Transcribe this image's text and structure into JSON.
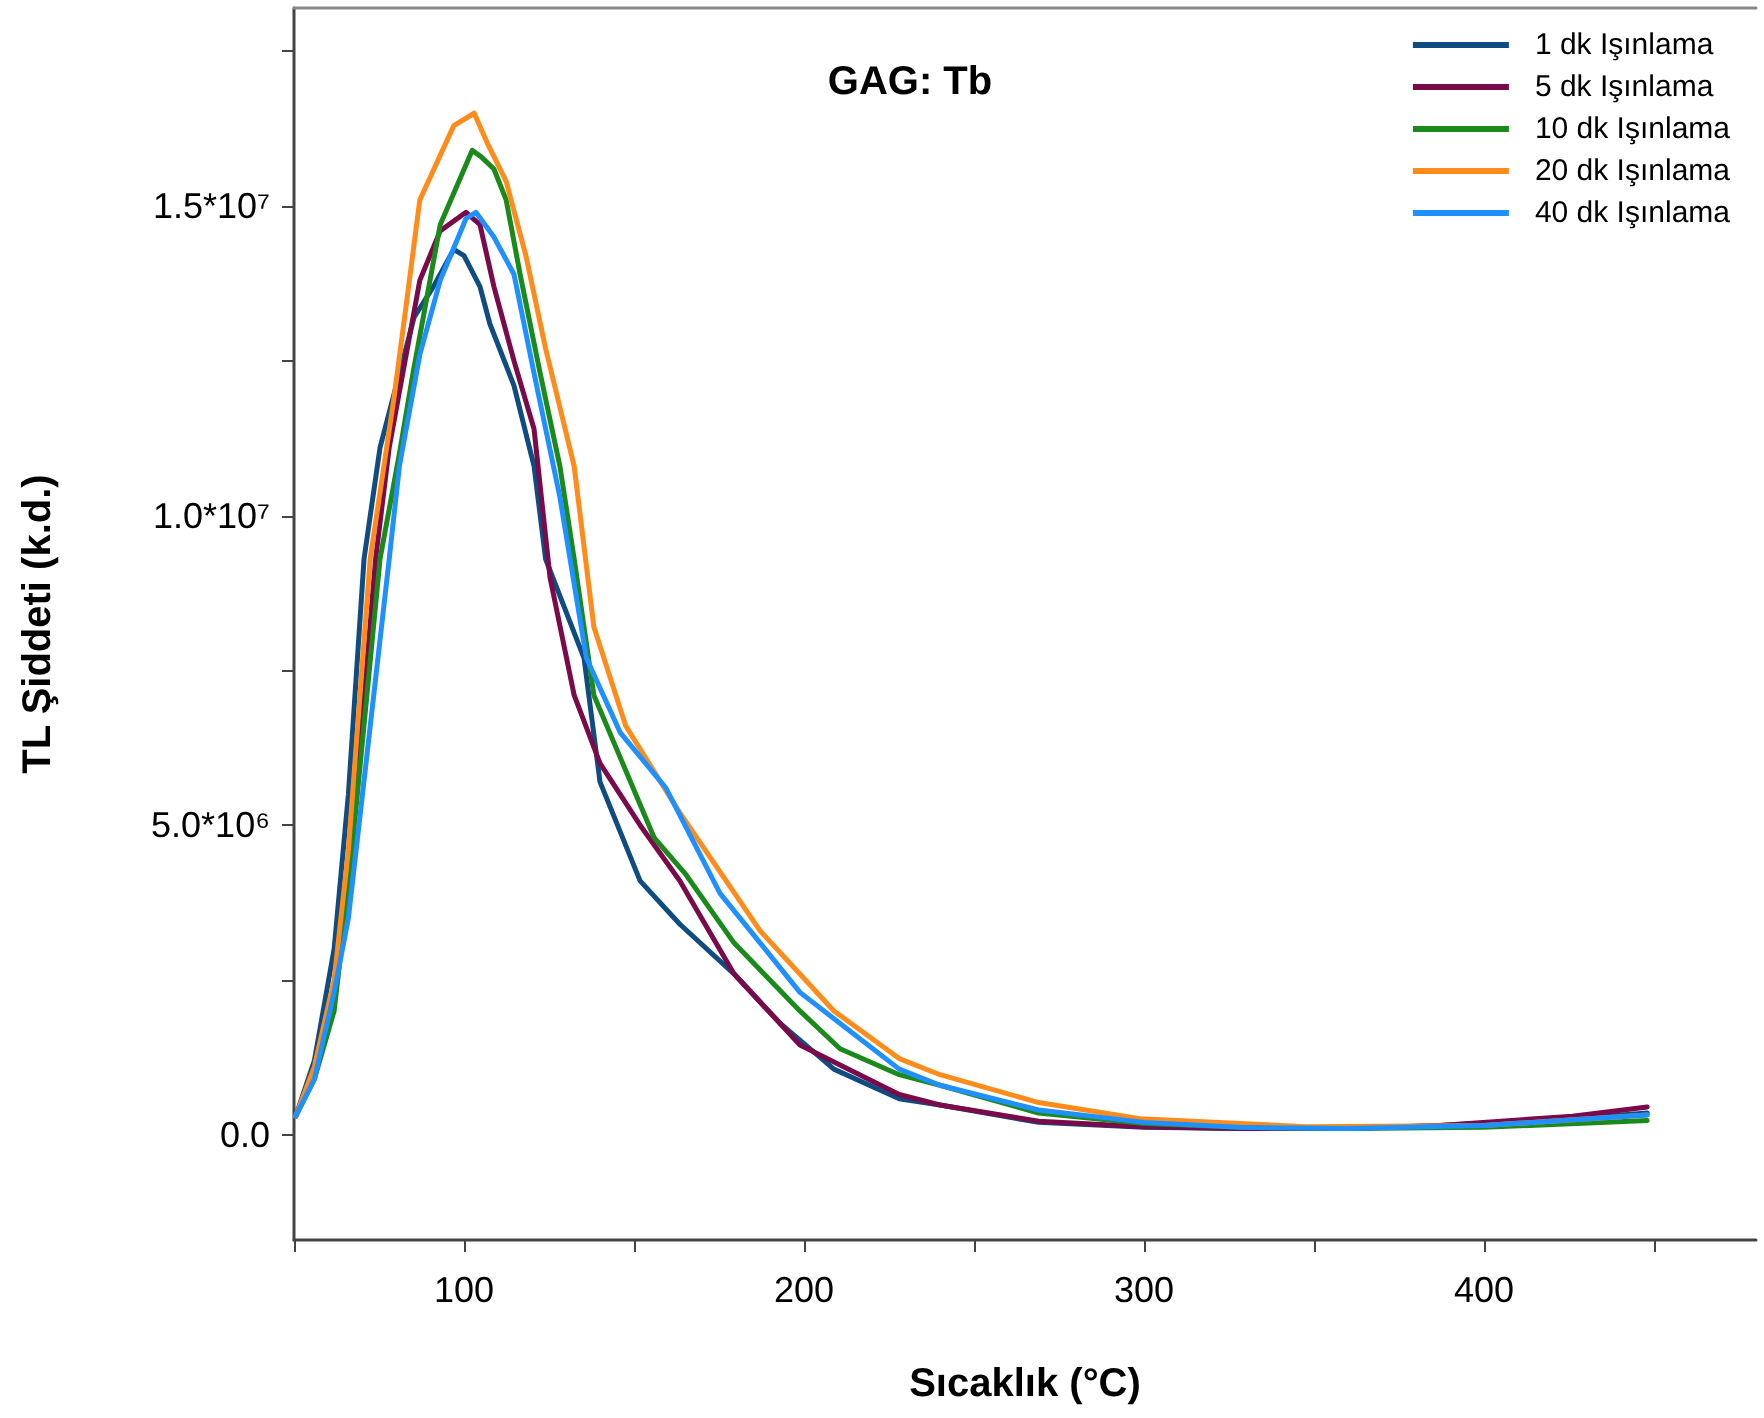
{
  "chart_data": {
    "type": "line",
    "title": "GAG: Tb",
    "xlabel": "Sıcaklık (°C)",
    "ylabel": "TL Şiddeti (k.d.)",
    "xlim": [
      50,
      480
    ],
    "xticks": [
      {
        "value": 50,
        "label": null
      },
      100,
      {
        "value": 150,
        "label": null
      },
      200,
      {
        "value": 250,
        "label": null
      },
      300,
      {
        "value": 350,
        "label": null
      },
      400,
      {
        "value": 450,
        "label": null
      }
    ],
    "ylim": [
      -1700000,
      18200000
    ],
    "yticks": [
      {
        "value": 0,
        "label": "0.0"
      },
      {
        "value": 2500000,
        "label": null
      },
      {
        "value": 5000000,
        "label": "5.0*10⁶"
      },
      {
        "value": 7500000,
        "label": null
      },
      {
        "value": 10000000,
        "label": "1.0*10⁷"
      },
      {
        "value": 12500000,
        "label": null
      },
      {
        "value": 15000000,
        "label": "1.5*10⁷"
      },
      {
        "value": 17500000,
        "label": null
      }
    ],
    "grid": false,
    "legend": "top right",
    "marker": "none",
    "line_style": "solid",
    "series": [
      {
        "name": "1 dk Işınlama",
        "color": "#0f4c81",
        "x": [
          50.5,
          56,
          61.8,
          66,
          70.6,
          75.3,
          85.3,
          91,
          97,
          100,
          104.7,
          107.6,
          114.7,
          120.6,
          124,
          135.3,
          140,
          151.8,
          163.5,
          179.4,
          193,
          208.8,
          228,
          240,
          269,
          300,
          328,
          360,
          387,
          426,
          448
        ],
        "values": [
          300000,
          1200000,
          3000000,
          5500000,
          9300000,
          11100000,
          13200000,
          13700000,
          14300000,
          14200000,
          13700000,
          13100000,
          12100000,
          10800000,
          9300000,
          7700000,
          5700000,
          4100000,
          3400000,
          2600000,
          1800000,
          1060000,
          580000,
          480000,
          200000,
          120000,
          100000,
          100000,
          150000,
          260000,
          350000
        ]
      },
      {
        "name": "5 dk Işınlama",
        "color": "#7a0a4a",
        "x": [
          50.5,
          56,
          61.8,
          66,
          74,
          78,
          87,
          93,
          100.6,
          104.7,
          108.8,
          114.7,
          120.6,
          125.3,
          132.4,
          140,
          151.8,
          163.5,
          179.4,
          198.8,
          228,
          240,
          269,
          300,
          328,
          360,
          387,
          426,
          448
        ],
        "values": [
          300000,
          1000000,
          2300000,
          4000000,
          9300000,
          11100000,
          13800000,
          14600000,
          14900000,
          14700000,
          13700000,
          12500000,
          11400000,
          9000000,
          7100000,
          6000000,
          5000000,
          4100000,
          2600000,
          1450000,
          650000,
          480000,
          220000,
          130000,
          100000,
          100000,
          150000,
          300000,
          450000
        ]
      },
      {
        "name": "10 dk Işınlama",
        "color": "#1a8a1a",
        "x": [
          50.5,
          56,
          61.8,
          66,
          75.3,
          81,
          85,
          93,
          102.4,
          105,
          108.8,
          112.4,
          116.5,
          122.4,
          128.2,
          132.4,
          138.2,
          145.9,
          155.9,
          165.3,
          179.4,
          198.8,
          210.6,
          228,
          240,
          269,
          300,
          328,
          360,
          400,
          448
        ],
        "values": [
          300000,
          900000,
          2000000,
          4000000,
          9300000,
          11000000,
          12300000,
          14700000,
          15900000,
          15800000,
          15600000,
          15100000,
          13900000,
          12300000,
          10800000,
          9300000,
          7100000,
          6100000,
          4800000,
          4200000,
          3100000,
          2000000,
          1390000,
          970000,
          800000,
          350000,
          180000,
          120000,
          100000,
          120000,
          230000
        ]
      },
      {
        "name": "20 dk Işınlama",
        "color": "#ff8c1a",
        "x": [
          50.5,
          56,
          61.8,
          66,
          72.4,
          79.4,
          83,
          87,
          97,
          103,
          107,
          112.4,
          118.2,
          124,
          132.4,
          138.2,
          147.6,
          163.5,
          187,
          208.8,
          228,
          240,
          269,
          298.8,
          347.6,
          400,
          448
        ],
        "values": [
          300000,
          1100000,
          2500000,
          4600000,
          9300000,
          11900000,
          13400000,
          15100000,
          16300000,
          16500000,
          16000000,
          15400000,
          14200000,
          12700000,
          10800000,
          8200000,
          6600000,
          5200000,
          3300000,
          2000000,
          1230000,
          970000,
          520000,
          260000,
          130000,
          150000,
          320000
        ]
      },
      {
        "name": "40 dk Işınlama",
        "color": "#1e90ff",
        "x": [
          50.5,
          56,
          61.8,
          66,
          78,
          81,
          87,
          93,
          100.6,
          103.5,
          108.8,
          114.7,
          120.6,
          128.2,
          136,
          145.9,
          159.4,
          175.3,
          198.8,
          228,
          240,
          269,
          300,
          328,
          360,
          400,
          448
        ],
        "values": [
          300000,
          900000,
          2300000,
          3500000,
          9300000,
          10800000,
          12600000,
          13800000,
          14800000,
          14900000,
          14500000,
          13900000,
          12300000,
          10300000,
          7700000,
          6500000,
          5600000,
          3900000,
          2300000,
          1060000,
          800000,
          400000,
          200000,
          120000,
          100000,
          150000,
          320000
        ]
      }
    ]
  }
}
